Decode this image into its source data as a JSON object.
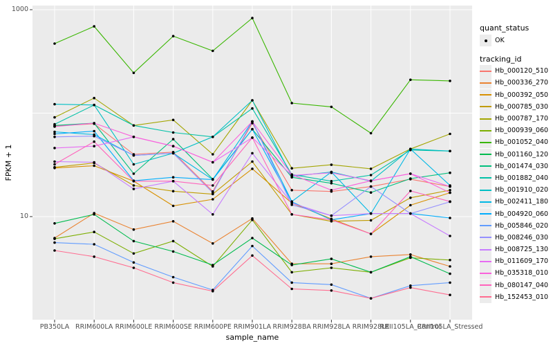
{
  "figure": {
    "panel_background": "#EBEBEB",
    "gridline_color": "#FFFFFF",
    "tick_color": "#333333",
    "axis_text_color": "#4D4D4D",
    "point_color": "#000000"
  },
  "legend": {
    "quant_status_title": "quant_status",
    "quant_status_items": [
      {
        "label": "OK",
        "symbol": "point",
        "color": "#000000"
      }
    ],
    "tracking_title": "tracking_id"
  },
  "chart_data": {
    "type": "line",
    "title": "",
    "xlabel": "sample_name",
    "ylabel": "FPKM + 1",
    "y_scale": "log10",
    "ylim": [
      1,
      1100
    ],
    "grid": true,
    "legend_position": "right",
    "marker": "black-point",
    "y_ticks": [
      {
        "value": 1000,
        "label": "1000"
      },
      {
        "value": 10,
        "label": "10"
      }
    ],
    "y_gridlines": [
      10,
      100,
      1000
    ],
    "categories": [
      "PB350LA",
      "RRIM600LA",
      "RRIM600LE",
      "RRIM600SE",
      "RRIM600PE",
      "RRIM901LA",
      "RRIM928BA",
      "RRIM928LA",
      "RRIM928LE",
      "RRII105LA_Control",
      "RRII105LA_Stressed"
    ],
    "series": [
      {
        "name": "Hb_000120_510",
        "color": "#F8766D",
        "values": [
          75,
          79,
          40,
          42,
          17.5,
          80,
          18,
          17.5,
          19.5,
          23,
          19.5
        ]
      },
      {
        "name": "Hb_000336_270",
        "color": "#EA8331",
        "values": [
          6.2,
          10.8,
          7.5,
          9.0,
          5.5,
          9.6,
          3.5,
          3.5,
          4.1,
          4.3,
          3.3
        ]
      },
      {
        "name": "Hb_000392_050",
        "color": "#D89000",
        "values": [
          29.5,
          31,
          22,
          12.7,
          14.7,
          29,
          13.5,
          9.5,
          6.8,
          12.9,
          17
        ]
      },
      {
        "name": "Hb_000785_030",
        "color": "#C09B00",
        "values": [
          30,
          33,
          20,
          17.6,
          16.5,
          34,
          10.5,
          9.0,
          9.2,
          15.2,
          18
        ]
      },
      {
        "name": "Hb_000787_170",
        "color": "#A3A500",
        "values": [
          91,
          140,
          76,
          86,
          40,
          133,
          29.3,
          31.7,
          29,
          45,
          63
        ]
      },
      {
        "name": "Hb_000939_060",
        "color": "#7CAE00",
        "values": [
          6.1,
          7.1,
          4.4,
          5.8,
          3.3,
          9.3,
          2.9,
          3.2,
          2.9,
          4.0,
          3.8
        ]
      },
      {
        "name": "Hb_001052_040",
        "color": "#39B600",
        "values": [
          470,
          690,
          245,
          555,
          400,
          830,
          125,
          115,
          64,
          210,
          205
        ]
      },
      {
        "name": "Hb_001160_120",
        "color": "#00BB4E",
        "values": [
          8.6,
          10.5,
          5.8,
          4.6,
          3.4,
          6.2,
          3.4,
          3.9,
          2.9,
          4.1,
          2.8
        ]
      },
      {
        "name": "Hb_001474_030",
        "color": "#00BF7D",
        "values": [
          76,
          80,
          26,
          56,
          23,
          70,
          24,
          21,
          17.1,
          23.3,
          26.5
        ]
      },
      {
        "name": "Hb_001882_040",
        "color": "#00C1A7",
        "values": [
          78,
          120,
          76,
          65,
          59,
          111,
          25.5,
          22,
          25.2,
          44,
          43
        ]
      },
      {
        "name": "Hb_001910_020",
        "color": "#00BFC4",
        "values": [
          122,
          120,
          32,
          41,
          59,
          133,
          24.5,
          27,
          22,
          45,
          43
        ]
      },
      {
        "name": "Hb_002411_180",
        "color": "#00B8E5",
        "values": [
          66,
          62,
          39,
          41,
          22.8,
          83,
          14,
          27,
          10.7,
          45,
          20
        ]
      },
      {
        "name": "Hb_004920_060",
        "color": "#00ACFC",
        "values": [
          63,
          67,
          22.2,
          24,
          22.8,
          70,
          13.9,
          9.3,
          10.7,
          10.7,
          9.7
        ]
      },
      {
        "name": "Hb_005846_020",
        "color": "#619CFF",
        "values": [
          5.6,
          5.4,
          3.6,
          2.6,
          1.95,
          5.2,
          2.3,
          2.2,
          1.62,
          2.15,
          2.3
        ]
      },
      {
        "name": "Hb_008246_030",
        "color": "#9590FF",
        "values": [
          59,
          60,
          39,
          41,
          17,
          83,
          13,
          10.2,
          19.5,
          10.7,
          13.9
        ]
      },
      {
        "name": "Hb_008725_130",
        "color": "#C77CFF",
        "values": [
          34,
          33.5,
          18.5,
          22,
          10.5,
          41,
          13.5,
          10.2,
          10.7,
          10.7,
          6.5
        ]
      },
      {
        "name": "Hb_011609_170",
        "color": "#E76BF3",
        "values": [
          46,
          48,
          59,
          48,
          33.5,
          58,
          25,
          26.5,
          22.2,
          26,
          19.5
        ]
      },
      {
        "name": "Hb_035318_010",
        "color": "#FA62DB",
        "values": [
          74,
          80,
          59,
          48,
          33.5,
          83,
          25.5,
          18,
          22.2,
          26,
          17
        ]
      },
      {
        "name": "Hb_080147_040",
        "color": "#FF62BC",
        "values": [
          32,
          53,
          22,
          22,
          20,
          58,
          10.5,
          9.3,
          6.8,
          17.7,
          14
        ]
      },
      {
        "name": "Hb_152453_010",
        "color": "#FF6C90",
        "values": [
          4.7,
          4.1,
          3.2,
          2.3,
          1.9,
          4.2,
          2.0,
          1.93,
          1.62,
          2.06,
          1.75
        ]
      }
    ]
  }
}
